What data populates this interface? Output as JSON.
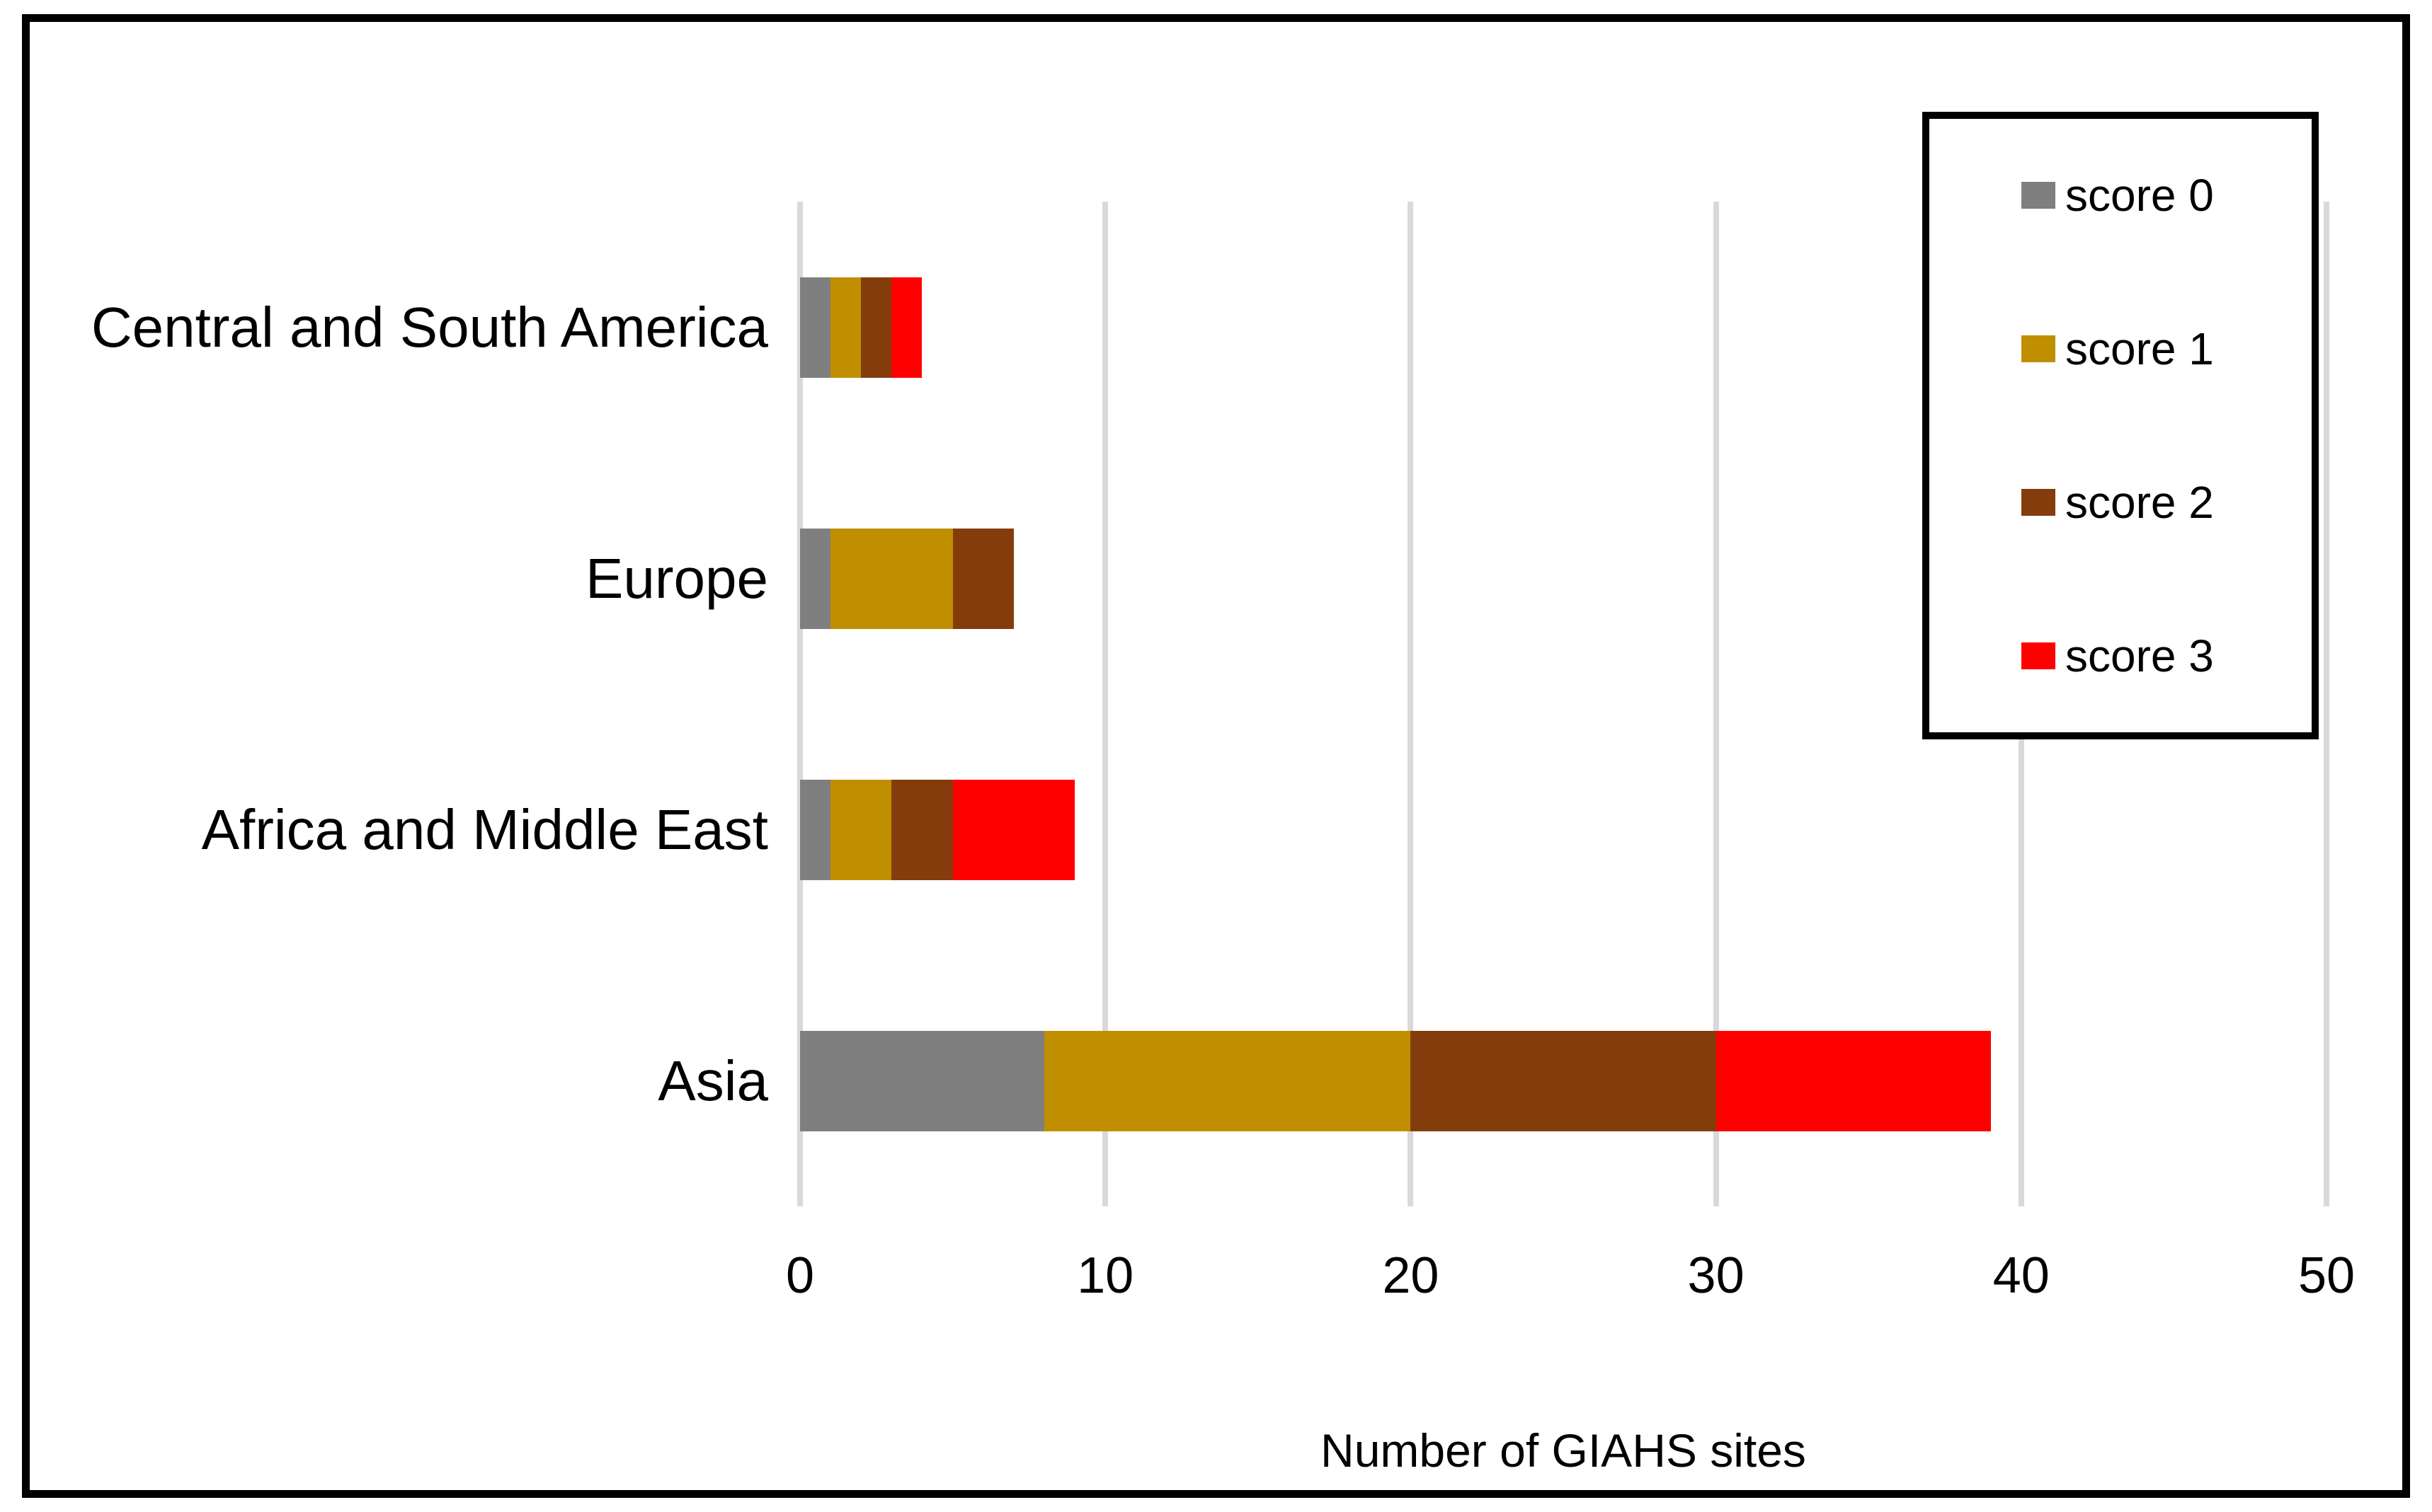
{
  "chart_data": {
    "type": "bar",
    "orientation": "horizontal",
    "stacked": true,
    "categories": [
      "Central and South America",
      "Europe",
      "Africa and Middle East",
      "Asia"
    ],
    "series": [
      {
        "name": "score 0",
        "color": "#7F7F7F",
        "values": [
          1,
          1,
          1,
          8
        ]
      },
      {
        "name": "score 1",
        "color": "#BF8F00",
        "values": [
          1,
          4,
          2,
          12
        ]
      },
      {
        "name": "score 2",
        "color": "#843C0C",
        "values": [
          1,
          2,
          2,
          10
        ]
      },
      {
        "name": "score 3",
        "color": "#FF0000",
        "values": [
          1,
          0,
          4,
          9
        ]
      }
    ],
    "totals": [
      4,
      7,
      9,
      39
    ],
    "title": "",
    "xlabel": "Number of GIAHS sites",
    "ylabel": "",
    "x_ticks": [
      "0",
      "10",
      "20",
      "30",
      "40",
      "50"
    ],
    "xlim": [
      0,
      50
    ],
    "grid": true,
    "legend_position": "top-right"
  },
  "colors": {
    "gridline": "#D9D9D9",
    "frame_border": "#000000",
    "legend_border": "#000000",
    "text": "#000000",
    "background": "#FFFFFF"
  }
}
